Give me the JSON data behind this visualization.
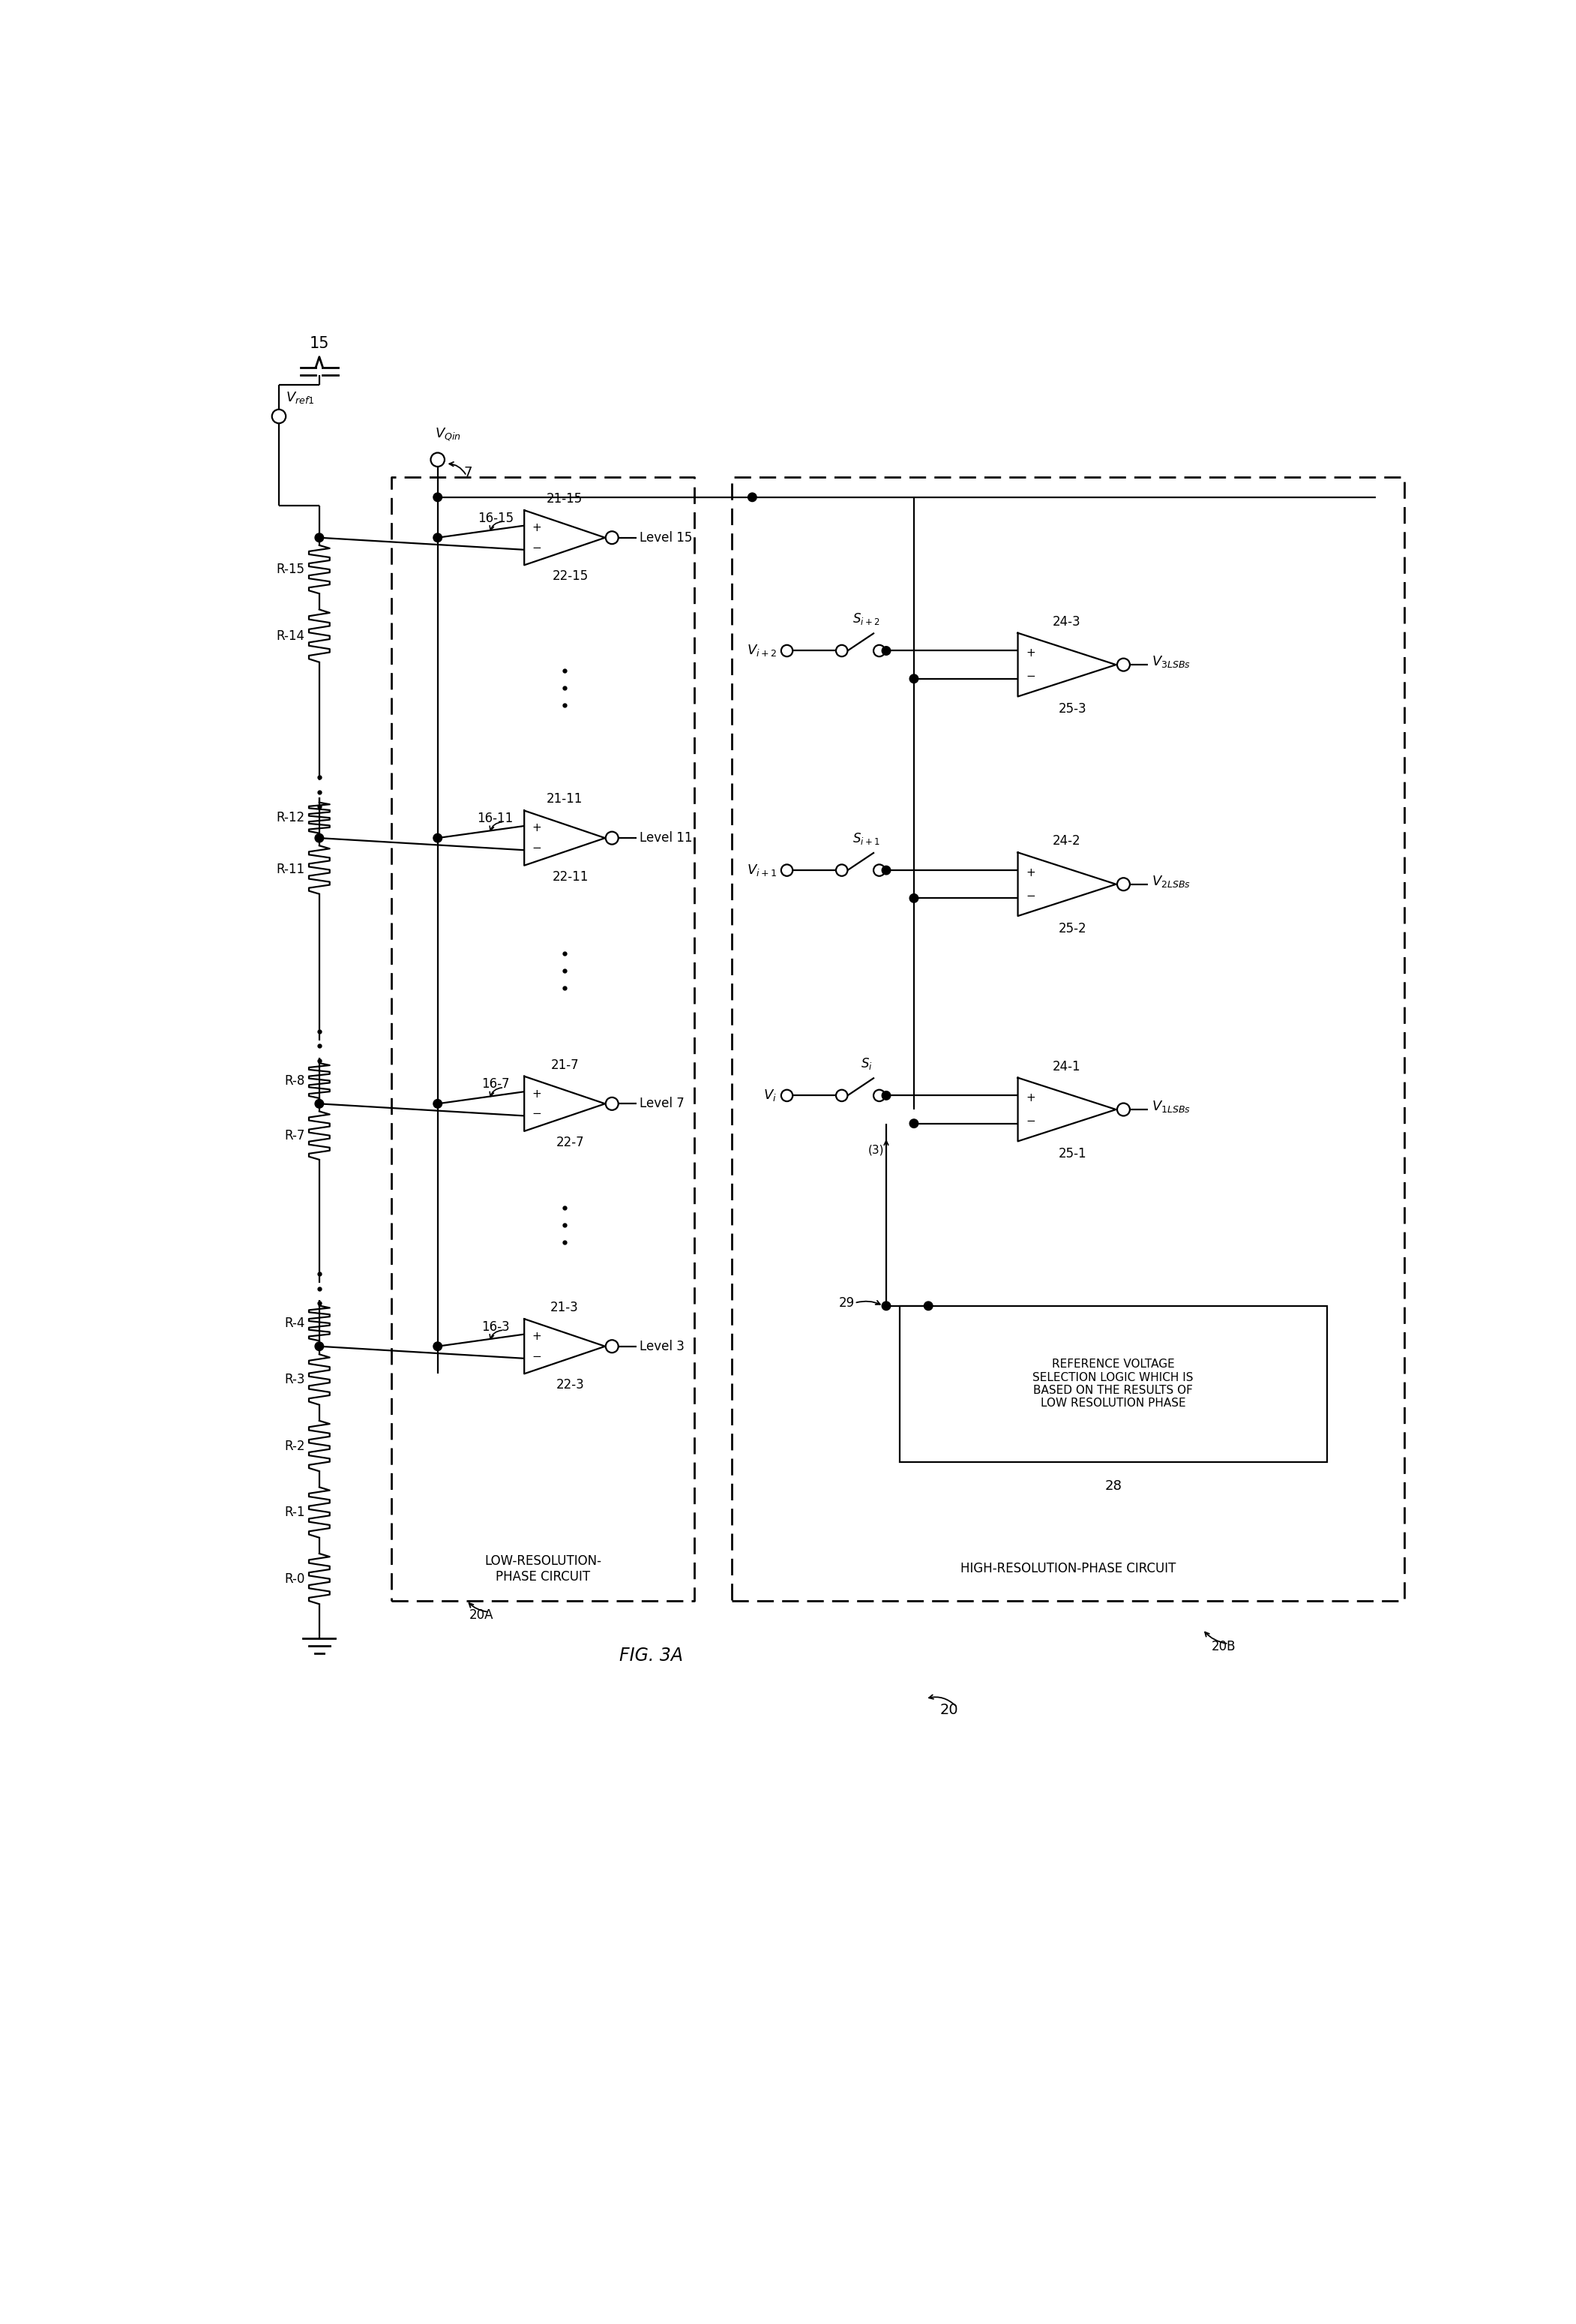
{
  "fig_width": 21.02,
  "fig_height": 30.98,
  "supply_label": "15",
  "vref1_label": "V_{ref1}",
  "vqin_label": "V_{Qin}",
  "vqin_number": "7",
  "res_left": [
    "R-15",
    "R-14",
    "R-12",
    "R-11",
    "R-8",
    "R-7",
    "R-4",
    "R-3",
    "R-2",
    "R-1",
    "R-0"
  ],
  "tap_labels": [
    "16-15",
    "16-11",
    "16-7",
    "16-3"
  ],
  "comp_left_names": [
    "21-15",
    "21-11",
    "21-7",
    "21-3"
  ],
  "comp_left_labels": [
    "22-15",
    "22-11",
    "22-7",
    "22-3"
  ],
  "level_names": [
    "Level 15",
    "Level 11",
    "Level 7",
    "Level 3"
  ],
  "comp_right_names": [
    "24-3",
    "24-2",
    "24-1"
  ],
  "comp_right_labels": [
    "25-3",
    "25-2",
    "25-1"
  ],
  "out_labels": [
    "V_{3LSBs}",
    "V_{2LSBs}",
    "V_{1LSBs}"
  ],
  "in_labels": [
    "V_{i+2}",
    "V_{i+1}",
    "V_i"
  ],
  "sw_labels": [
    "S_{i+2}",
    "S_{i+1}",
    "S_i"
  ],
  "ref_box_text": "REFERENCE VOLTAGE\nSELECTION LOGIC WHICH IS\nBASED ON THE RESULTS OF\nLOW RESOLUTION PHASE",
  "low_res_text": "LOW-RESOLUTION-\nPHASE CIRCUIT",
  "high_res_text": "HIGH-RESOLUTION-PHASE CIRCUIT",
  "label_20": "20",
  "label_20A": "20A",
  "label_20B": "20B",
  "label_28": "28",
  "label_29": "29",
  "label_3": "(3)",
  "fig_label": "FIG. 3A"
}
